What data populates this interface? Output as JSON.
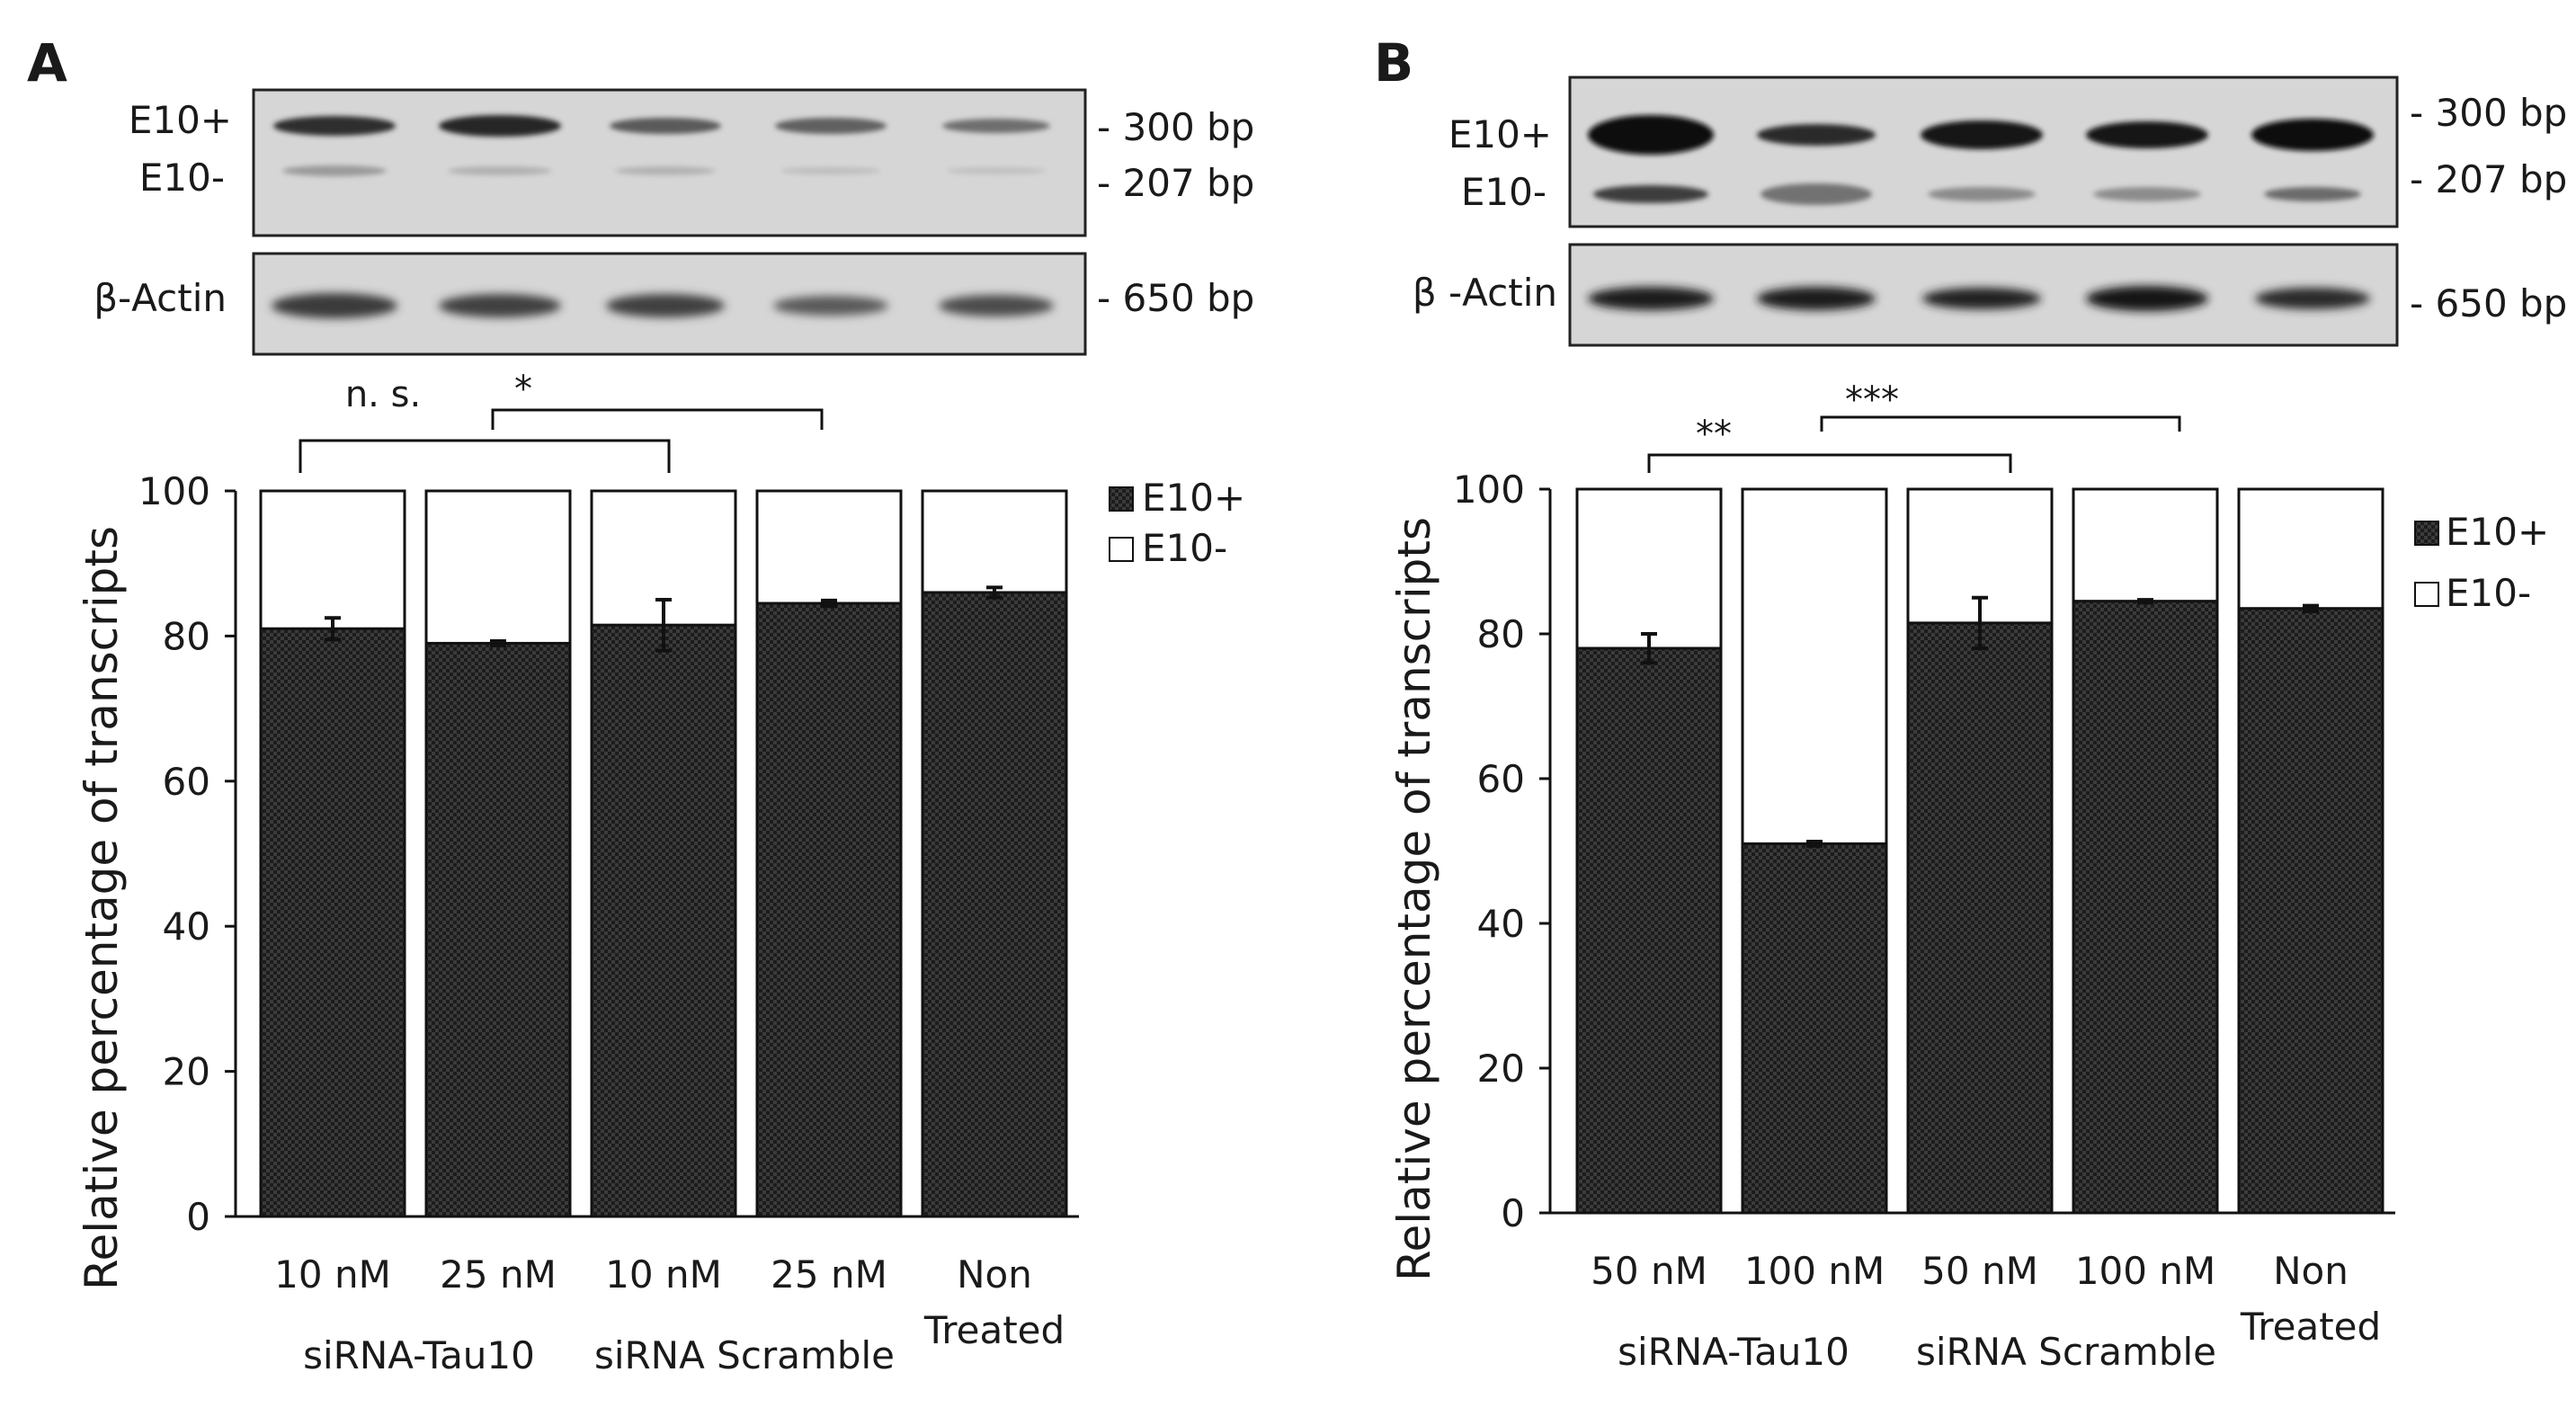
{
  "chart_data": [
    {
      "type": "bar",
      "panel": "A",
      "ylabel": "Relative percentage of transcripts",
      "ylim": [
        0,
        100
      ],
      "yticks": [
        "0",
        "20",
        "40",
        "60",
        "80",
        "100"
      ],
      "categories": [
        "10 nM",
        "25 nM",
        "10 nM",
        "25 nM",
        "Non Treated"
      ],
      "group_labels": [
        "siRNA-Tau10",
        "siRNA Scramble"
      ],
      "series": [
        {
          "name": "E10+",
          "values": [
            81,
            79,
            81.5,
            84.5,
            86
          ],
          "errors": [
            1.5,
            0.3,
            3.5,
            0.4,
            0.7
          ]
        },
        {
          "name": "E10-",
          "values": [
            19,
            21,
            18.5,
            15.5,
            14
          ]
        }
      ],
      "legend": [
        "E10+",
        "E10-"
      ],
      "significance": [
        {
          "label": "n. s.",
          "between": [
            "10 nM siRNA-Tau10",
            "10 nM siRNA Scramble"
          ]
        },
        {
          "label": "*",
          "between": [
            "25 nM siRNA-Tau10",
            "25 nM siRNA Scramble"
          ]
        }
      ],
      "gel": {
        "top_labels": [
          "E10+",
          "E10-"
        ],
        "bottom_label": "β-Actin",
        "sizes": [
          "- 300 bp",
          "- 207 bp",
          "- 650 bp"
        ]
      }
    },
    {
      "type": "bar",
      "panel": "B",
      "ylabel": "Relative percentage of transcripts",
      "ylim": [
        0,
        100
      ],
      "yticks": [
        "0",
        "20",
        "40",
        "60",
        "80",
        "100"
      ],
      "categories": [
        "50 nM",
        "100 nM",
        "50 nM",
        "100 nM",
        "Non Treated"
      ],
      "group_labels": [
        "siRNA-Tau10",
        "siRNA Scramble"
      ],
      "series": [
        {
          "name": "E10+",
          "values": [
            78,
            51,
            81.5,
            84.5,
            83.5
          ],
          "errors": [
            2,
            0.3,
            3.5,
            0.2,
            0.4
          ]
        },
        {
          "name": "E10-",
          "values": [
            22,
            49,
            18.5,
            15.5,
            16.5
          ]
        }
      ],
      "legend": [
        "E10+",
        "E10-"
      ],
      "significance": [
        {
          "label": "**",
          "between": [
            "50 nM siRNA-Tau10",
            "50 nM siRNA Scramble"
          ]
        },
        {
          "label": "***",
          "between": [
            "100 nM siRNA-Tau10",
            "100 nM siRNA Scramble"
          ]
        }
      ],
      "gel": {
        "top_labels": [
          "E10+",
          "E10-"
        ],
        "bottom_label": "β -Actin",
        "sizes": [
          "- 300 bp",
          "- 207 bp",
          "- 650 bp"
        ]
      }
    }
  ],
  "colors": {
    "bar_fill_dark": "#333333",
    "bar_fill_light": "#ffffff",
    "gel_background": "#d9d9d9",
    "band": "#2a2a2a"
  }
}
